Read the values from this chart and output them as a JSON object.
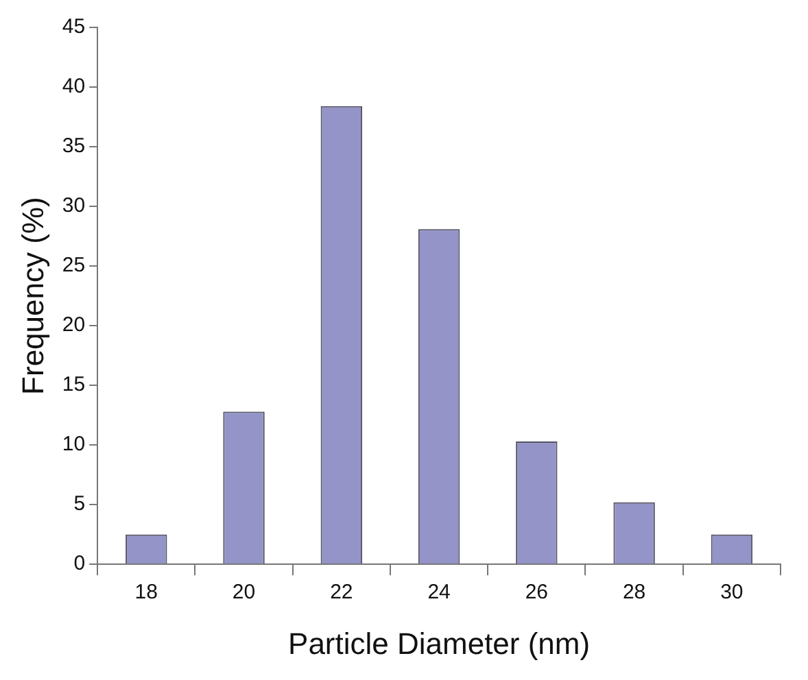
{
  "chart_data": {
    "type": "bar",
    "xlabel": "Particle Diameter (nm)",
    "ylabel": "Frequency (%)",
    "categories": [
      "18",
      "20",
      "22",
      "24",
      "26",
      "28",
      "30"
    ],
    "values": [
      2.5,
      12.8,
      38.4,
      28.1,
      10.3,
      5.2,
      2.5
    ],
    "color": "#9494c8",
    "ylim": [
      0,
      45
    ],
    "yticks": [
      0,
      5,
      10,
      15,
      20,
      25,
      30,
      35,
      40,
      45
    ],
    "grid": false,
    "legend": false
  }
}
